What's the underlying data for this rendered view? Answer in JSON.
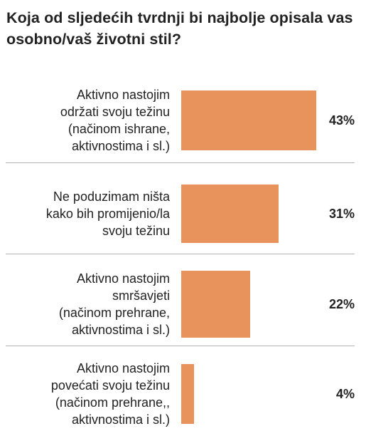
{
  "title": "Koja od sljedećih tvrdnji bi najbolje opisala vas osobno/vaš životni stil?",
  "colors": {
    "bar": "#e8935b",
    "divider": "#b5b5b5",
    "text": "#222222"
  },
  "chart_data": {
    "type": "bar",
    "orientation": "horizontal",
    "title": "Koja od sljedećih tvrdnji bi najbolje opisala vas osobno/vaš životni stil?",
    "categories": [
      "Aktivno nastojim održati svoju težinu (načinom ishrane, aktivnostima i sl.)",
      "Ne poduzimam ništa kako bih promijenio/la svoju težinu",
      "Aktivno nastojim smršavjeti (načinom prehrane, aktivnostima i sl.)",
      "Aktivno nastojim povećati svoju težinu (načinom prehrane,, aktivnostima i sl.)"
    ],
    "category_lines": [
      [
        "Aktivno nastojim",
        "održati svoju težinu",
        "(načinom ishrane,",
        "aktivnostima i sl.)"
      ],
      [
        "Ne poduzimam ništa",
        "kako bih promijenio/la",
        "svoju težinu"
      ],
      [
        "Aktivno nastojim",
        "smršavjeti",
        "(načinom prehrane,",
        "aktivnostima i sl.)"
      ],
      [
        "Aktivno nastojim",
        "povećati svoju težinu",
        "(načinom prehrane,,",
        "aktivnostima i sl.)"
      ]
    ],
    "values": [
      43,
      31,
      22,
      4
    ],
    "value_labels": [
      "43%",
      "31%",
      "22%",
      "4%"
    ],
    "unit": "%",
    "xlim": [
      0,
      43
    ],
    "grid": false,
    "legend": "none"
  }
}
